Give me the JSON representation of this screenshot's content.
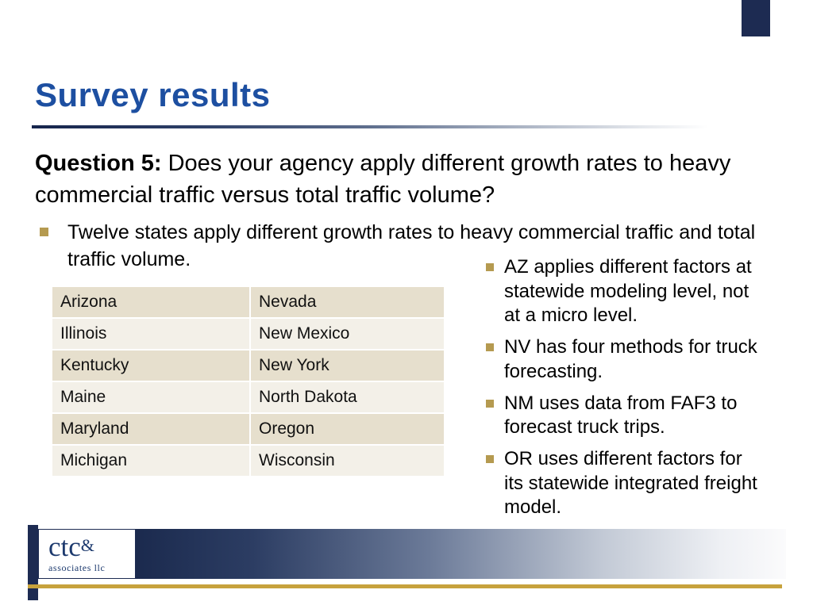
{
  "slide": {
    "title": "Survey results",
    "question_bold": "Question 5:",
    "question_rest": " Does your agency apply different growth rates to heavy commercial traffic versus total traffic volume?",
    "bullet_main": "Twelve states apply different growth rates to heavy commercial traffic and total traffic volume.",
    "table": {
      "rows": [
        [
          "Arizona",
          "Nevada"
        ],
        [
          "Illinois",
          "New Mexico"
        ],
        [
          "Kentucky",
          "New York"
        ],
        [
          "Maine",
          "North Dakota"
        ],
        [
          "Maryland",
          "Oregon"
        ],
        [
          "Michigan",
          "Wisconsin"
        ]
      ]
    },
    "side_bullets": [
      "AZ applies different factors at statewide modeling level, not at a micro level.",
      "NV has four methods for truck forecasting.",
      "NM uses data from FAF3 to forecast truck trips.",
      "OR uses different factors for its statewide integrated freight model."
    ],
    "footer": {
      "logo_main": "ctc",
      "logo_amp": "&",
      "logo_sub": "associates llc"
    },
    "colors": {
      "title_blue": "#1d4fa1",
      "navy": "#1d2b52",
      "gold": "#c7a23c",
      "bullet_tan": "#b59a50",
      "table_row_dark": "#e6dfcd",
      "table_row_light": "#f3f0e8"
    }
  }
}
